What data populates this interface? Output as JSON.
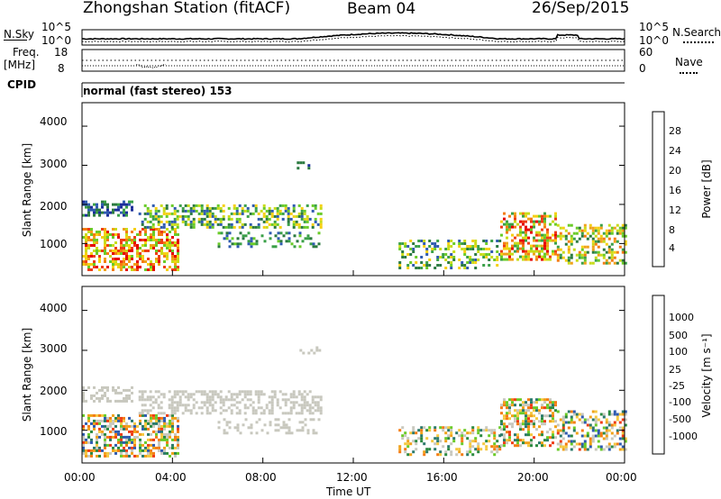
{
  "header": {
    "station": "Zhongshan Station (fitACF)",
    "beam": "Beam 04",
    "date": "26/Sep/2015"
  },
  "top_panel": {
    "left_label": "N.Sky",
    "right_label": "N.Search",
    "left_ticks": [
      "10^5",
      "10^0"
    ],
    "right_ticks": [
      "10^5",
      "10^0"
    ]
  },
  "freq_panel": {
    "left_label_1": "Freq.",
    "left_label_2": "[MHz]",
    "right_label": "Nave",
    "left_ticks": [
      "18",
      "8"
    ],
    "right_ticks": [
      "60",
      "0"
    ]
  },
  "cpid": {
    "label": "CPID",
    "value": "normal (fast stereo) 153"
  },
  "chart_data": [
    {
      "type": "heatmap",
      "quantity": "power",
      "xlabel": "",
      "ylabel": "Slant Range [km]",
      "ylim": [
        180,
        4600
      ],
      "x_ticks": [],
      "y_ticks": [
        "4000",
        "3000",
        "2000",
        "1000"
      ],
      "colorbar": {
        "label": "Power [dB]",
        "ticks": [
          "28",
          "24",
          "20",
          "16",
          "12",
          "8",
          "4"
        ],
        "colors": [
          "#0000ff",
          "#1c2e9a",
          "#2f5bb0",
          "#2b7a40",
          "#3aa048",
          "#6acb28",
          "#c8dc1a",
          "#f5d012",
          "#f0a21a",
          "#f47c12",
          "#ee3d15",
          "#e60000"
        ]
      }
    },
    {
      "type": "heatmap",
      "quantity": "velocity",
      "xlabel": "Time UT",
      "ylabel": "Slant Range [km]",
      "ylim": [
        180,
        4600
      ],
      "x_ticks": [
        "00:00",
        "04:00",
        "08:00",
        "12:00",
        "16:00",
        "20:00",
        "00:00"
      ],
      "y_ticks": [
        "4000",
        "3000",
        "2000",
        "1000"
      ],
      "colorbar": {
        "label": "Velocity [m s⁻¹]",
        "ticks": [
          "1000",
          "500",
          "100",
          "25",
          "-25",
          "-100",
          "-500",
          "-1000"
        ],
        "colors": [
          "#e60000",
          "#ee3d15",
          "#f47c12",
          "#f0a21a",
          "#f5c840",
          "#c8c8be",
          "#c8c8be",
          "#6acb28",
          "#2b8a40",
          "#2b7a6a",
          "#2f5bb0",
          "#1c2e9a"
        ]
      }
    }
  ]
}
